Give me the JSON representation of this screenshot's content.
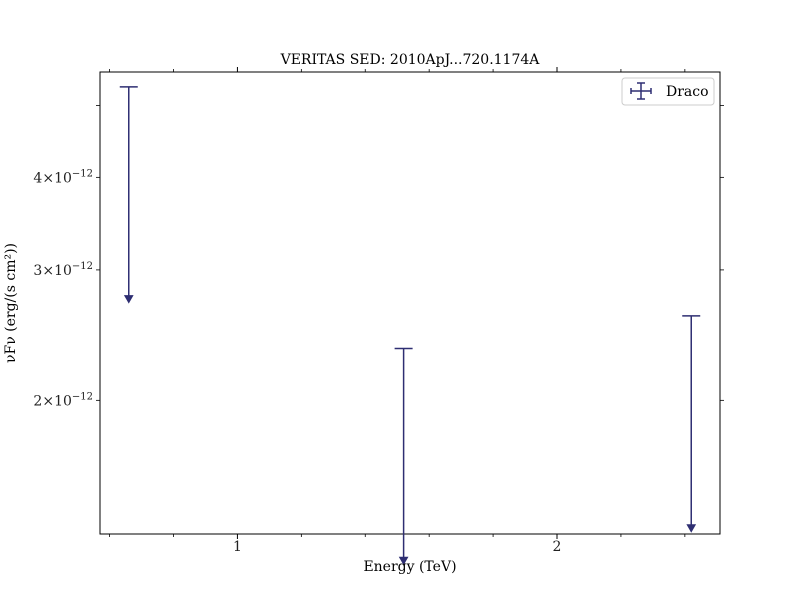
{
  "chart_data": {
    "type": "scatter",
    "title": "VERITAS SED: 2010ApJ...720.1174A",
    "xlabel": "Energy (TeV)",
    "ylabel": "νFν (erg/(s cm²))",
    "x_scale": "linear",
    "y_scale": "log",
    "xlim": [
      0.57,
      2.51
    ],
    "ylim": [
      1.32e-12,
      5.55e-12
    ],
    "x_ticks": [
      {
        "value": 1,
        "label": "1"
      },
      {
        "value": 2,
        "label": "2"
      }
    ],
    "y_ticks": [
      {
        "value": 2e-12,
        "mantissa": "2",
        "base": "10",
        "exp": "−12"
      },
      {
        "value": 3e-12,
        "mantissa": "3",
        "base": "10",
        "exp": "−12"
      },
      {
        "value": 4e-12,
        "mantissa": "4",
        "base": "10",
        "exp": "−12"
      }
    ],
    "legend": {
      "location": "top-right",
      "entries": [
        "Draco"
      ]
    },
    "grid": false,
    "series": [
      {
        "name": "Draco",
        "color": "#2e2e72",
        "marker": "upper-limit",
        "points": [
          {
            "x": 0.66,
            "y": 5.3e-12,
            "upper_limit": true
          },
          {
            "x": 1.52,
            "y": 2.35e-12,
            "upper_limit": true
          },
          {
            "x": 2.42,
            "y": 2.6e-12,
            "upper_limit": true
          }
        ]
      }
    ]
  }
}
